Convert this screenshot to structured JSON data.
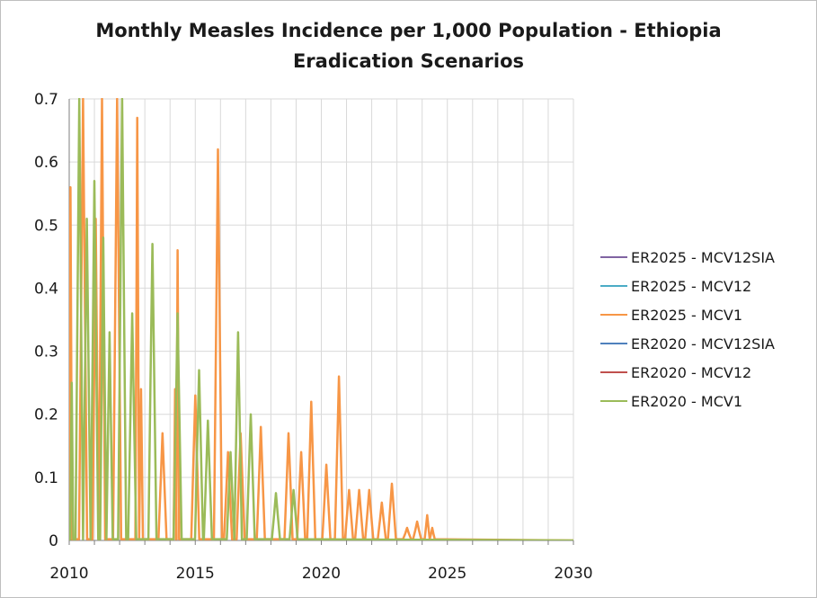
{
  "chart_data": {
    "type": "line",
    "title": "Monthly Measles Incidence per 1,000 Population - Ethiopia",
    "subtitle": "Eradication Scenarios",
    "xlabel": "",
    "ylabel": "",
    "xlim": [
      2010,
      2030
    ],
    "ylim": [
      0,
      0.7
    ],
    "xticks": [
      "2010",
      "2015",
      "2020",
      "2025",
      "2030"
    ],
    "yticks": [
      "0",
      "0.1",
      "0.2",
      "0.3",
      "0.4",
      "0.5",
      "0.6",
      "0.7"
    ],
    "grid": true,
    "legend_position": "right",
    "series": [
      {
        "name": "ER2025 - MCV12SIA",
        "color": "#8064a2",
        "peaks": []
      },
      {
        "name": "ER2025 - MCV12",
        "color": "#4bacc6",
        "peaks": []
      },
      {
        "name": "ER2025 - MCV1",
        "color": "#f79646",
        "peaks": [
          [
            2010.05,
            0.56
          ],
          [
            2010.55,
            0.7
          ],
          [
            2011.05,
            0.51
          ],
          [
            2011.3,
            0.7
          ],
          [
            2011.9,
            0.7
          ],
          [
            2012.7,
            0.67
          ],
          [
            2012.85,
            0.24
          ],
          [
            2013.7,
            0.17
          ],
          [
            2014.2,
            0.24
          ],
          [
            2014.3,
            0.46
          ],
          [
            2015.0,
            0.23
          ],
          [
            2015.9,
            0.62
          ],
          [
            2016.3,
            0.14
          ],
          [
            2016.8,
            0.17
          ],
          [
            2017.6,
            0.18
          ],
          [
            2018.7,
            0.17
          ],
          [
            2019.2,
            0.14
          ],
          [
            2019.6,
            0.22
          ],
          [
            2020.2,
            0.12
          ],
          [
            2020.7,
            0.26
          ],
          [
            2021.1,
            0.08
          ],
          [
            2021.5,
            0.08
          ],
          [
            2021.9,
            0.08
          ],
          [
            2022.4,
            0.06
          ],
          [
            2022.8,
            0.09
          ],
          [
            2023.4,
            0.02
          ],
          [
            2023.8,
            0.03
          ],
          [
            2024.2,
            0.04
          ],
          [
            2024.4,
            0.02
          ]
        ]
      },
      {
        "name": "ER2020 - MCV12SIA",
        "color": "#4f81bd",
        "peaks": []
      },
      {
        "name": "ER2020 - MCV12",
        "color": "#c0504d",
        "peaks": []
      },
      {
        "name": "ER2020 - MCV1",
        "color": "#9bbb59",
        "peaks": [
          [
            2010.1,
            0.25
          ],
          [
            2010.4,
            0.7
          ],
          [
            2010.7,
            0.51
          ],
          [
            2011.0,
            0.57
          ],
          [
            2011.35,
            0.48
          ],
          [
            2011.6,
            0.33
          ],
          [
            2012.1,
            0.7
          ],
          [
            2012.5,
            0.36
          ],
          [
            2013.3,
            0.47
          ],
          [
            2014.3,
            0.36
          ],
          [
            2015.15,
            0.27
          ],
          [
            2015.5,
            0.19
          ],
          [
            2016.4,
            0.14
          ],
          [
            2016.7,
            0.33
          ],
          [
            2017.2,
            0.2
          ],
          [
            2018.2,
            0.075
          ],
          [
            2018.9,
            0.08
          ]
        ]
      }
    ]
  }
}
